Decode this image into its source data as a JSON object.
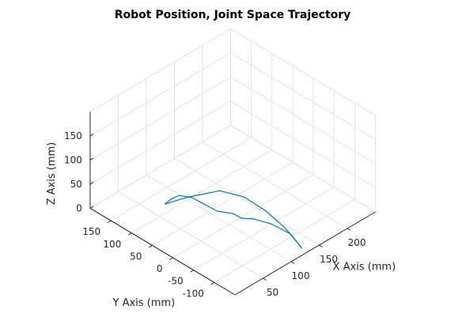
{
  "chart_data": {
    "type": "line",
    "title": "Robot Position, Joint Space Trajectory",
    "xlabel": "X Axis (mm)",
    "ylabel": "Y Axis (mm)",
    "zlabel": "Z Axis (mm)",
    "xlim": [
      0,
      250
    ],
    "ylim": [
      -150,
      200
    ],
    "zlim": [
      0,
      200
    ],
    "xticks": [
      "50",
      "100",
      "150",
      "200"
    ],
    "yticks": [
      "-100",
      "-50",
      "0",
      "50",
      "100",
      "150"
    ],
    "zticks": [
      "0",
      "50",
      "100",
      "150"
    ],
    "grid": true,
    "series_color": "#0072BD",
    "series": [
      {
        "x": [
          130,
          117,
          102,
          88,
          70,
          45,
          28
        ],
        "y": [
          -135,
          -112,
          -86,
          -51,
          -18,
          29,
          58
        ],
        "z": [
          0,
          39,
          71,
          92,
          100,
          79,
          62
        ]
      },
      {
        "x": [
          28,
          31,
          34,
          40,
          56,
          70,
          78,
          90,
          107,
          125,
          130
        ],
        "y": [
          58,
          45,
          31,
          8,
          -31,
          -50,
          -60,
          -73,
          -93,
          -115,
          -135
        ],
        "z": [
          62,
          78,
          90,
          93,
          74,
          69,
          59,
          56,
          44,
          22,
          0
        ]
      }
    ]
  }
}
